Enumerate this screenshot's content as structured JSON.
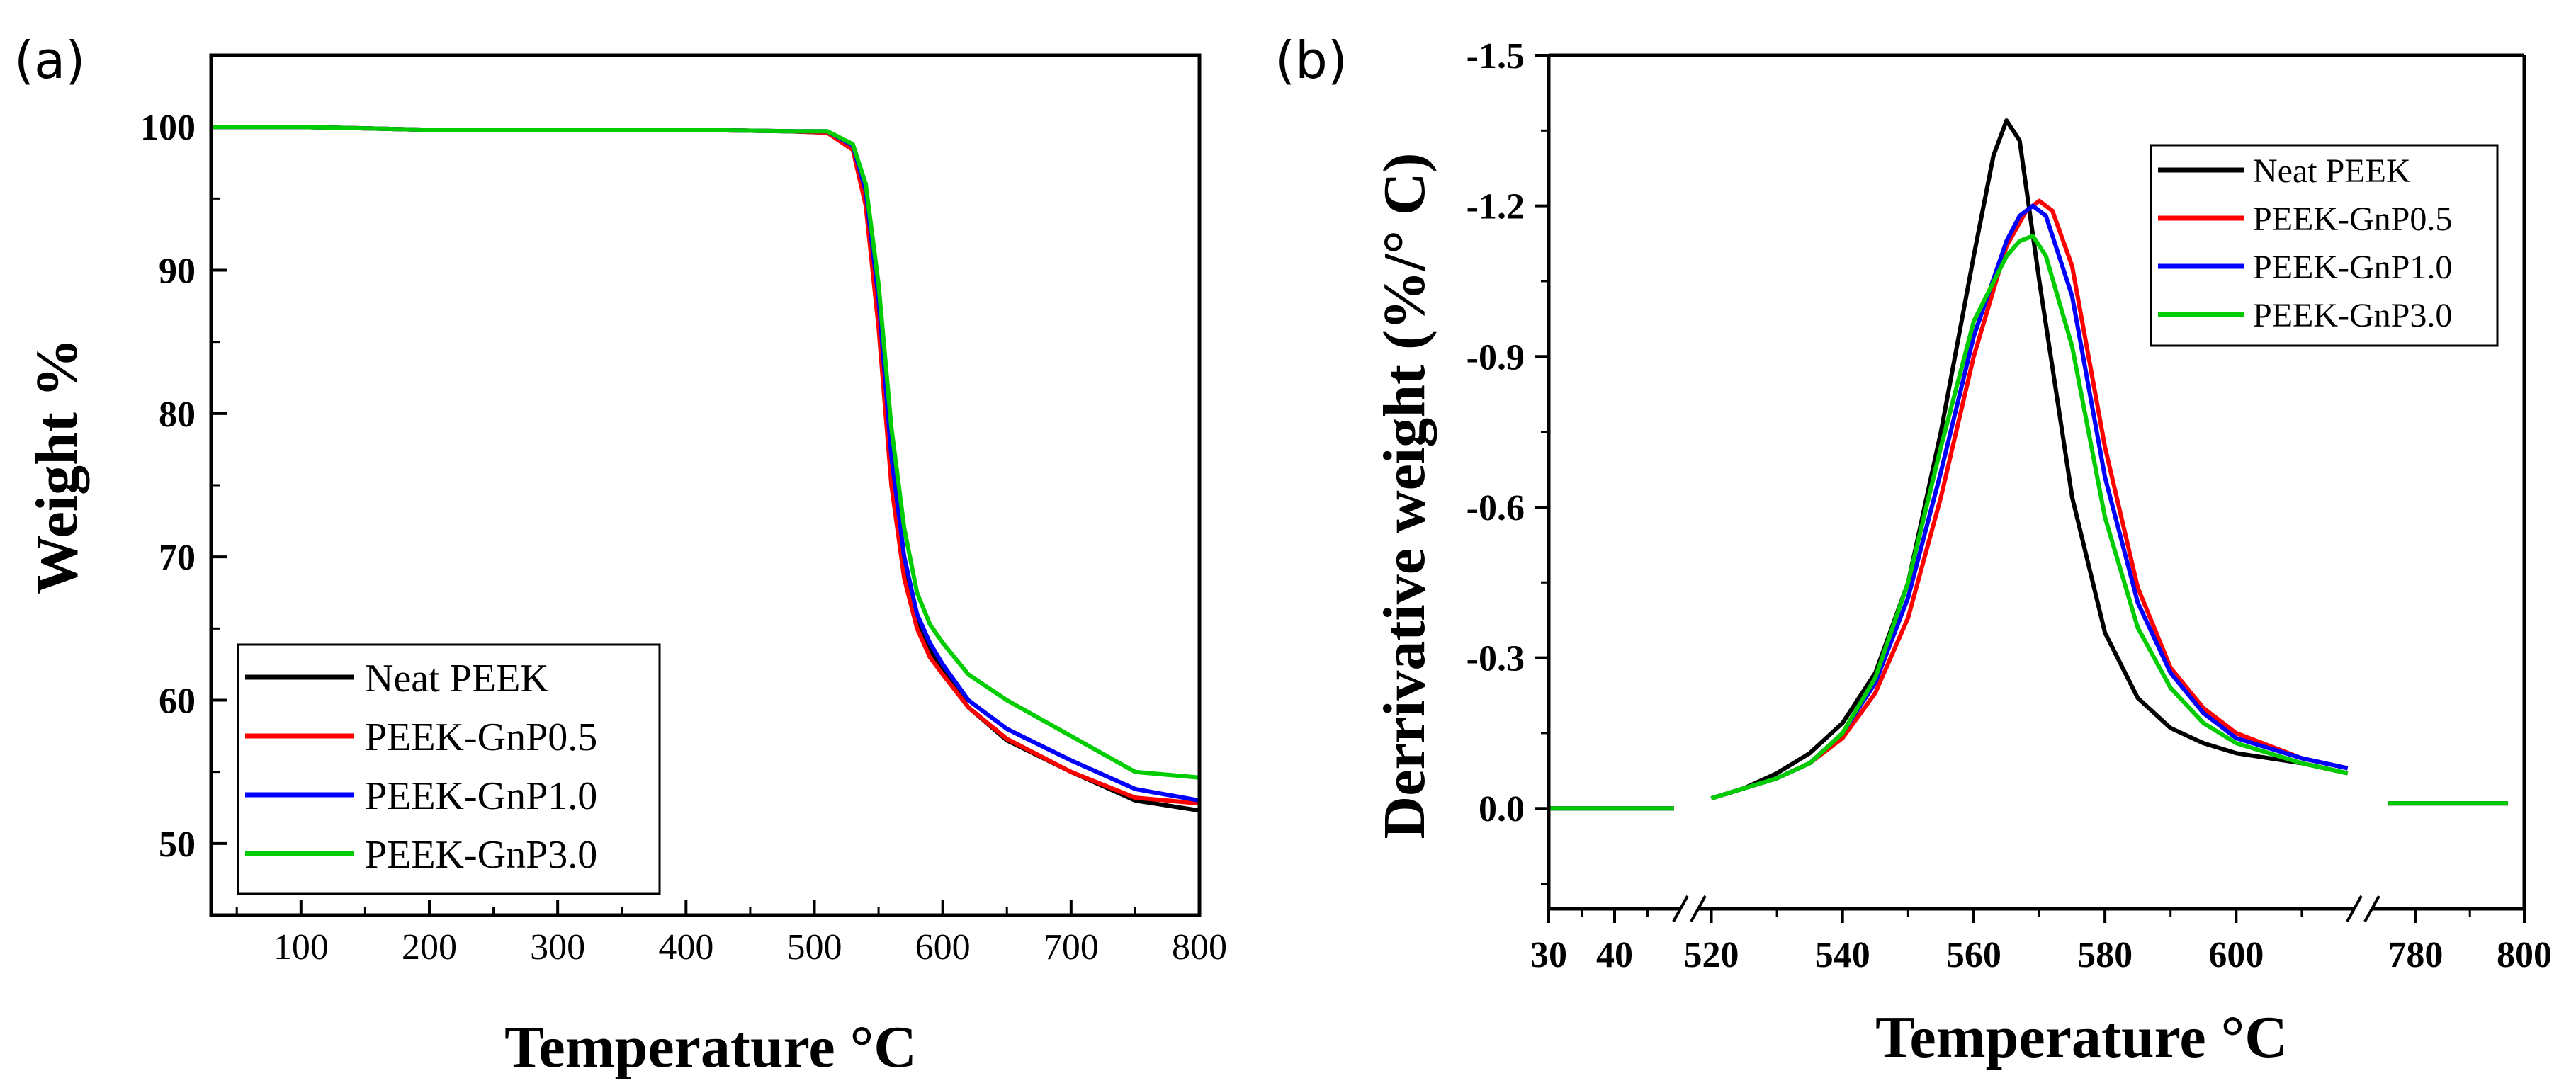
{
  "chart_data": [
    {
      "id": "a",
      "panel_label": "(a)",
      "type": "line",
      "title": "",
      "xlabel": "Temperature °C",
      "ylabel": "Weight %",
      "xlim": [
        30,
        800
      ],
      "ylim": [
        45,
        105
      ],
      "xticks": [
        100,
        200,
        300,
        400,
        500,
        600,
        700,
        800
      ],
      "yticks": [
        50,
        60,
        70,
        80,
        90,
        100
      ],
      "legend_position": "bottom-left",
      "series": [
        {
          "name": "Neat PEEK",
          "color": "#000000",
          "x": [
            30,
            100,
            200,
            300,
            400,
            480,
            510,
            530,
            540,
            550,
            560,
            570,
            580,
            590,
            600,
            620,
            650,
            700,
            750,
            800
          ],
          "values": [
            100,
            100,
            99.8,
            99.8,
            99.8,
            99.7,
            99.6,
            98.5,
            95,
            87,
            76,
            69.5,
            65.5,
            63.5,
            62,
            59.5,
            57.2,
            55,
            53,
            52.3
          ]
        },
        {
          "name": "PEEK-GnP0.5",
          "color": "#ff0000",
          "x": [
            30,
            100,
            200,
            300,
            400,
            480,
            510,
            530,
            540,
            550,
            560,
            570,
            580,
            590,
            600,
            620,
            650,
            700,
            750,
            800
          ],
          "values": [
            100,
            100,
            99.8,
            99.8,
            99.8,
            99.7,
            99.6,
            98.4,
            94.5,
            86,
            75,
            68.5,
            65,
            63,
            61.8,
            59.5,
            57.3,
            55,
            53.2,
            52.8
          ]
        },
        {
          "name": "PEEK-GnP1.0",
          "color": "#0000ff",
          "x": [
            30,
            100,
            200,
            300,
            400,
            480,
            510,
            530,
            540,
            550,
            560,
            570,
            580,
            590,
            600,
            620,
            650,
            700,
            750,
            800
          ],
          "values": [
            100,
            100,
            99.8,
            99.8,
            99.8,
            99.7,
            99.7,
            98.7,
            95.5,
            88,
            77,
            70,
            66,
            64,
            62.5,
            60,
            58,
            55.8,
            53.8,
            53
          ]
        },
        {
          "name": "PEEK-GnP3.0",
          "color": "#00cc00",
          "x": [
            30,
            100,
            200,
            300,
            400,
            480,
            510,
            530,
            540,
            550,
            560,
            570,
            580,
            590,
            600,
            620,
            650,
            700,
            750,
            800
          ],
          "values": [
            100,
            100,
            99.8,
            99.8,
            99.8,
            99.7,
            99.7,
            98.8,
            96,
            89,
            79,
            72,
            67.5,
            65.3,
            64,
            61.8,
            60,
            57.5,
            55,
            54.6
          ]
        }
      ]
    },
    {
      "id": "b",
      "panel_label": "(b)",
      "type": "line",
      "title": "",
      "xlabel": "Temperature °C",
      "ylabel": "Derrivative weight (%/° C)",
      "ylim_display_top": -1.5,
      "ylim_display_bottom": 0.2,
      "y_axis_inverted": true,
      "x_axis_breaks": [
        "50-518",
        "618-772"
      ],
      "xtick_labels": [
        "30",
        "40",
        "520",
        "540",
        "560",
        "580",
        "600",
        "780",
        "800"
      ],
      "ytick_labels": [
        "-1.5",
        "-1.2",
        "-0.9",
        "-0.6",
        "-0.3",
        "0.0"
      ],
      "legend_position": "top-right",
      "series": [
        {
          "name": "Neat PEEK",
          "color": "#000000",
          "seg_left": {
            "x": [
              30,
              35,
              40,
              45,
              49
            ],
            "values": [
              0.0,
              0.0,
              0.0,
              0.0,
              0.0
            ]
          },
          "seg_mid": {
            "x": [
              520,
              525,
              530,
              535,
              540,
              545,
              550,
              555,
              560,
              563,
              565,
              567,
              570,
              575,
              580,
              585,
              590,
              595,
              600,
              610,
              617
            ],
            "values": [
              -0.02,
              -0.04,
              -0.07,
              -0.11,
              -0.17,
              -0.27,
              -0.45,
              -0.75,
              -1.1,
              -1.3,
              -1.37,
              -1.33,
              -1.05,
              -0.62,
              -0.35,
              -0.22,
              -0.16,
              -0.13,
              -0.11,
              -0.09,
              -0.07
            ]
          },
          "seg_right": {
            "x": [
              775,
              780,
              790,
              797
            ],
            "values": [
              -0.01,
              -0.01,
              -0.01,
              -0.01
            ]
          }
        },
        {
          "name": "PEEK-GnP0.5",
          "color": "#ff0000",
          "seg_left": {
            "x": [
              30,
              35,
              40,
              45,
              49
            ],
            "values": [
              0.0,
              0.0,
              0.0,
              0.0,
              0.0
            ]
          },
          "seg_mid": {
            "x": [
              520,
              525,
              530,
              535,
              540,
              545,
              550,
              555,
              560,
              565,
              568,
              570,
              572,
              575,
              580,
              585,
              590,
              595,
              600,
              610,
              617
            ],
            "values": [
              -0.02,
              -0.04,
              -0.06,
              -0.09,
              -0.14,
              -0.23,
              -0.38,
              -0.62,
              -0.9,
              -1.12,
              -1.19,
              -1.21,
              -1.19,
              -1.08,
              -0.72,
              -0.44,
              -0.28,
              -0.2,
              -0.15,
              -0.1,
              -0.08
            ]
          },
          "seg_right": {
            "x": [
              775,
              780,
              790,
              797
            ],
            "values": [
              -0.01,
              -0.01,
              -0.01,
              -0.01
            ]
          }
        },
        {
          "name": "PEEK-GnP1.0",
          "color": "#0000ff",
          "seg_left": {
            "x": [
              30,
              35,
              40,
              45,
              49
            ],
            "values": [
              0.0,
              0.0,
              0.0,
              0.0,
              0.0
            ]
          },
          "seg_mid": {
            "x": [
              520,
              525,
              530,
              535,
              540,
              545,
              550,
              555,
              560,
              565,
              567,
              569,
              571,
              575,
              580,
              585,
              590,
              595,
              600,
              610,
              617
            ],
            "values": [
              -0.02,
              -0.04,
              -0.06,
              -0.09,
              -0.15,
              -0.25,
              -0.42,
              -0.67,
              -0.94,
              -1.13,
              -1.18,
              -1.2,
              -1.18,
              -1.02,
              -0.66,
              -0.41,
              -0.27,
              -0.19,
              -0.14,
              -0.1,
              -0.08
            ]
          },
          "seg_right": {
            "x": [
              775,
              780,
              790,
              797
            ],
            "values": [
              -0.01,
              -0.01,
              -0.01,
              -0.01
            ]
          }
        },
        {
          "name": "PEEK-GnP3.0",
          "color": "#00cc00",
          "seg_left": {
            "x": [
              30,
              35,
              40,
              45,
              49
            ],
            "values": [
              0.0,
              0.0,
              0.0,
              0.0,
              0.0
            ]
          },
          "seg_mid": {
            "x": [
              520,
              525,
              530,
              535,
              540,
              545,
              550,
              555,
              560,
              565,
              567,
              569,
              571,
              575,
              580,
              585,
              590,
              595,
              600,
              610,
              617
            ],
            "values": [
              -0.02,
              -0.04,
              -0.06,
              -0.09,
              -0.15,
              -0.26,
              -0.45,
              -0.72,
              -0.97,
              -1.1,
              -1.13,
              -1.14,
              -1.1,
              -0.92,
              -0.58,
              -0.36,
              -0.24,
              -0.17,
              -0.13,
              -0.09,
              -0.07
            ]
          },
          "seg_right": {
            "x": [
              775,
              780,
              790,
              797
            ],
            "values": [
              -0.01,
              -0.01,
              -0.01,
              -0.01
            ]
          }
        }
      ]
    }
  ]
}
